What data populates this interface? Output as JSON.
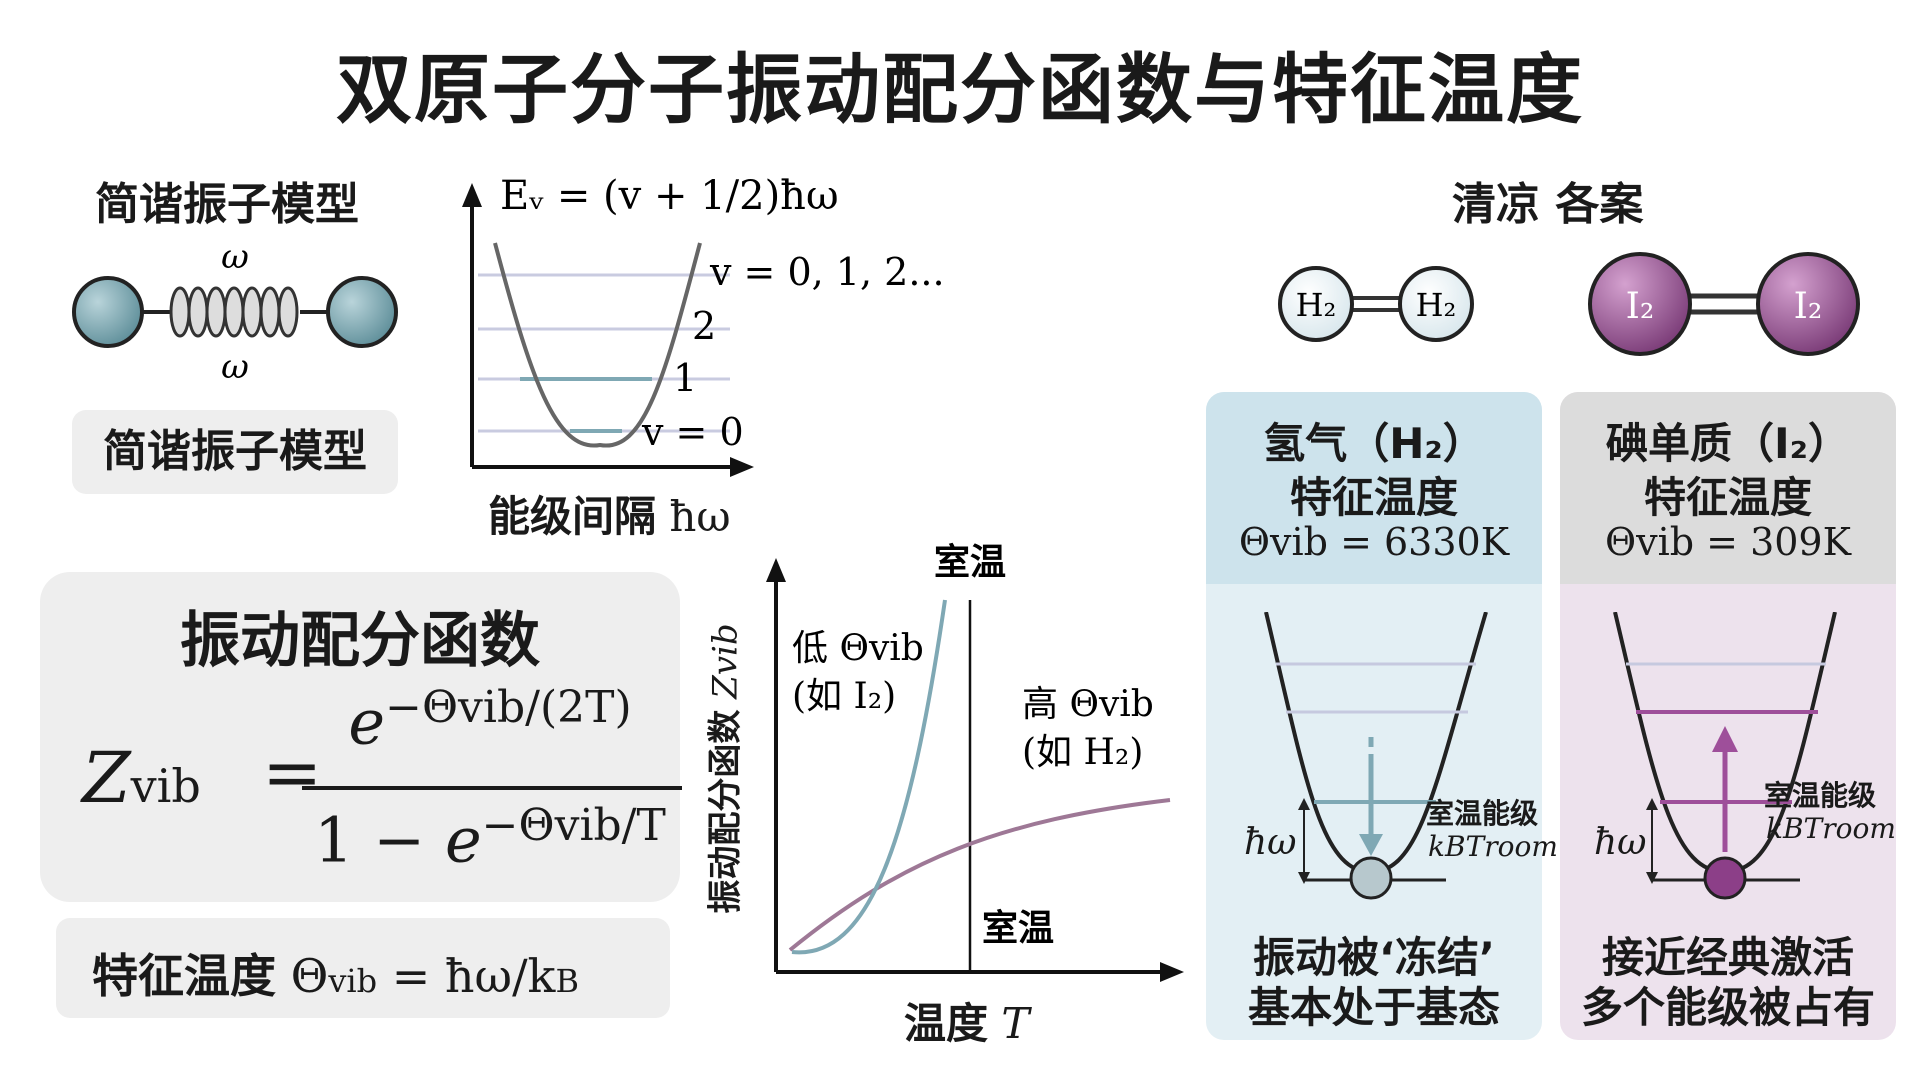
{
  "title": "双原子分子振动配分函数与特征温度",
  "model": {
    "heading": "简谐振子模型",
    "omega_top": "ω",
    "omega_bottom": "ω",
    "pill_label": "简谐振子模型"
  },
  "energy_plot": {
    "formula": "Eᵥ = (v + 1/2)ħω",
    "level_labels": [
      "v = 0, 1, 2...",
      "2",
      "1",
      "v = 0"
    ],
    "xlabel_text": "能级间隔",
    "xlabel_math": "ħω"
  },
  "partition": {
    "heading": "振动配分函数",
    "lhs": "Zvib",
    "lhs_base": "Z",
    "lhs_sub": "vib",
    "equals": "=",
    "numerator_base": "e",
    "numerator_exp": "−Θvib/(2T)",
    "denominator_prefix": "1 − ",
    "denominator_base": "e",
    "denominator_exp": "−Θvib/T"
  },
  "char_temp": {
    "label": "特征温度",
    "theta": "Θ",
    "sub": "vib",
    "rhs": " = ħω/k",
    "rhs_sub": "B"
  },
  "z_plot": {
    "ylabel": "振动配分函数",
    "ylabel_math": "Zvib",
    "xlabel": "温度",
    "xlabel_math": "T",
    "room_top": "室温",
    "room_bottom": "室温",
    "low_line1": "低 Θvib",
    "low_line2": "(如 I₂)",
    "high_line1": "高 Θvib",
    "high_line2": "(如 H₂)",
    "colors": {
      "low": "#7fa8b4",
      "high": "#9e7896"
    }
  },
  "cases": {
    "heading": "清凉 各案",
    "h2_atom": "H₂",
    "i2_atom": "I₂",
    "h2": {
      "name": "氢气（H₂）",
      "subtitle": "特征温度",
      "theta": "Θvib = 6330K",
      "room_label": "室温能级",
      "room_math": "kBTroom",
      "hbar": "ħω",
      "desc1": "振动被‘冻结’",
      "desc2": "基本处于基态",
      "bg": "#e3eff4",
      "header_bg": "#cde3ec"
    },
    "i2": {
      "name": "碘单质（I₂）",
      "subtitle": "特征温度",
      "theta": "Θvib = 309K",
      "room_label": "室温能级",
      "room_math": "kBTroom",
      "hbar": "ħω",
      "desc1": "接近经典激活",
      "desc2": "多个能级被占有",
      "bg": "#ede2ed",
      "header_bg": "#dcdcdc"
    }
  }
}
